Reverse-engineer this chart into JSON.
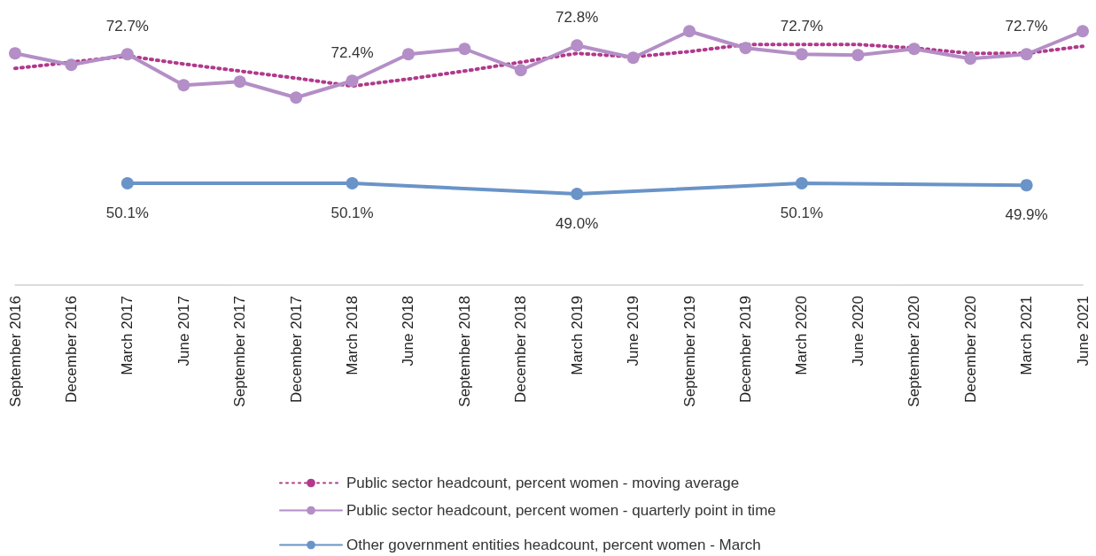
{
  "chart_data": [
    {
      "type": "line",
      "categories": [
        null,
        null,
        null,
        null,
        null,
        null,
        null,
        null,
        null,
        null,
        null,
        null,
        null,
        null,
        null,
        null,
        null,
        null,
        null,
        null
      ],
      "series": [
        {
          "name": "Public sector headcount, percent women - moving average",
          "color": "#b03a8c",
          "line_style": "dotted",
          "marker": "none",
          "values": [
            72.54,
            72.61,
            72.68,
            72.59,
            72.51,
            72.43,
            72.34,
            72.42,
            72.51,
            72.61,
            72.71,
            72.67,
            72.73,
            72.81,
            72.81,
            72.81,
            72.77,
            72.71,
            72.71,
            72.79
          ]
        },
        {
          "name": "Public sector headcount, percent women - quarterly point in time",
          "color": "#b48ec6",
          "line_style": "solid",
          "marker": "circle",
          "values": [
            72.71,
            72.58,
            72.7,
            72.35,
            72.39,
            72.21,
            72.4,
            72.7,
            72.76,
            72.52,
            72.8,
            72.66,
            72.96,
            72.77,
            72.7,
            72.69,
            72.76,
            72.65,
            72.7,
            72.96
          ],
          "value_labels": [
            null,
            null,
            "72.7%",
            null,
            null,
            null,
            "72.4%",
            null,
            null,
            null,
            "72.8%",
            null,
            null,
            null,
            "72.7%",
            null,
            null,
            null,
            "72.7%",
            null
          ]
        }
      ],
      "tick_labels": false,
      "grid": false,
      "legend": "bottom"
    },
    {
      "type": "line",
      "categories": [
        "September 2016",
        "December 2016",
        "March 2017",
        "June 2017",
        "September 2017",
        "December 2017",
        "March 2018",
        "June 2018",
        "September 2018",
        "December 2018",
        "March 2019",
        "June 2019",
        "September 2019",
        "December 2019",
        "March 2020",
        "June 2020",
        "September 2020",
        "December 2020",
        "March 2021",
        "June 2021"
      ],
      "series": [
        {
          "name": "Other government entities headcount, percent women - March",
          "color": "#6a94c8",
          "line_style": "solid",
          "marker": "circle",
          "values": [
            null,
            null,
            50.1,
            null,
            null,
            null,
            50.1,
            null,
            null,
            null,
            49.0,
            null,
            null,
            null,
            50.1,
            null,
            null,
            null,
            49.9,
            null
          ],
          "value_labels": [
            null,
            null,
            "50.1%",
            null,
            null,
            null,
            "50.1%",
            null,
            null,
            null,
            "49.0%",
            null,
            null,
            null,
            "50.1%",
            null,
            null,
            null,
            "49.9%",
            null
          ]
        }
      ],
      "tick_labels": "x",
      "grid": false,
      "legend": "bottom"
    }
  ]
}
